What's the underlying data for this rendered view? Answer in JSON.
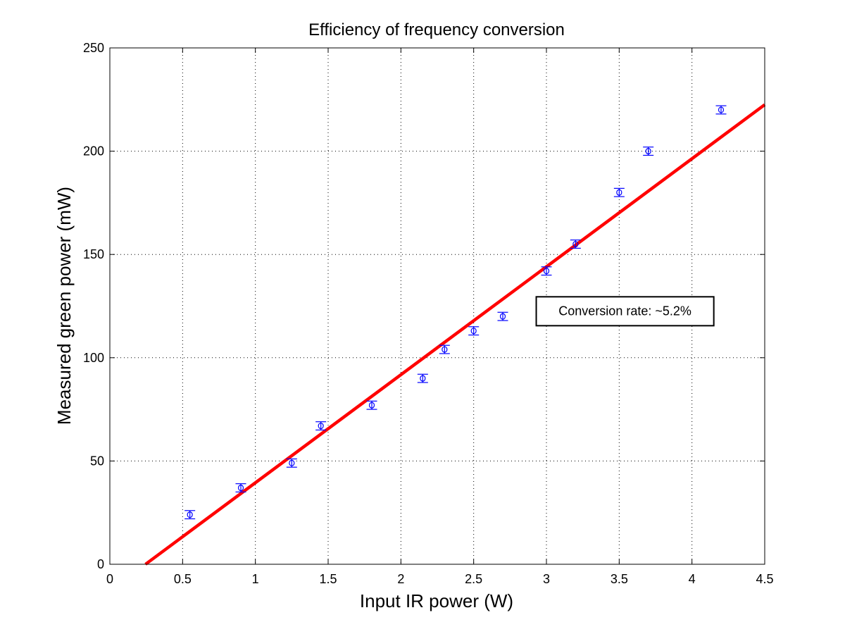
{
  "chart_data": {
    "type": "scatter",
    "title": "Efficiency of frequency conversion",
    "xlabel": "Input IR power (W)",
    "ylabel": "Measured green power (mW)",
    "xlim": [
      0,
      4.5
    ],
    "ylim": [
      0,
      250
    ],
    "xticks": [
      0,
      0.5,
      1,
      1.5,
      2,
      2.5,
      3,
      3.5,
      4,
      4.5
    ],
    "xtick_labels": [
      "0",
      "0.5",
      "1",
      "1.5",
      "2",
      "2.5",
      "3",
      "3.5",
      "4",
      "4.5"
    ],
    "yticks": [
      0,
      50,
      100,
      150,
      200,
      250
    ],
    "ytick_labels": [
      "0",
      "50",
      "100",
      "150",
      "200",
      "250"
    ],
    "grid": true,
    "series": [
      {
        "name": "Measured data",
        "kind": "errorbar",
        "marker": "circle",
        "color": "#0000ff",
        "x": [
          0.55,
          0.9,
          1.25,
          1.45,
          1.8,
          2.15,
          2.3,
          2.5,
          2.7,
          3.0,
          3.2,
          3.5,
          3.7,
          4.2
        ],
        "y": [
          24,
          37,
          49,
          67,
          77,
          90,
          104,
          113,
          120,
          142,
          155,
          180,
          200,
          220
        ],
        "yerr": [
          2,
          2,
          2,
          2,
          2,
          2,
          2,
          2,
          2,
          2,
          2,
          2,
          2,
          2
        ]
      },
      {
        "name": "Linear fit",
        "kind": "line",
        "color": "#ff0000",
        "x": [
          0.245,
          4.5
        ],
        "y": [
          0,
          222.5
        ]
      }
    ],
    "annotations": [
      {
        "text": "Conversion rate: ~5.2%",
        "x": [
          2.93,
          4.15
        ],
        "y": [
          115.5,
          129.5
        ],
        "boxed": true
      }
    ]
  }
}
